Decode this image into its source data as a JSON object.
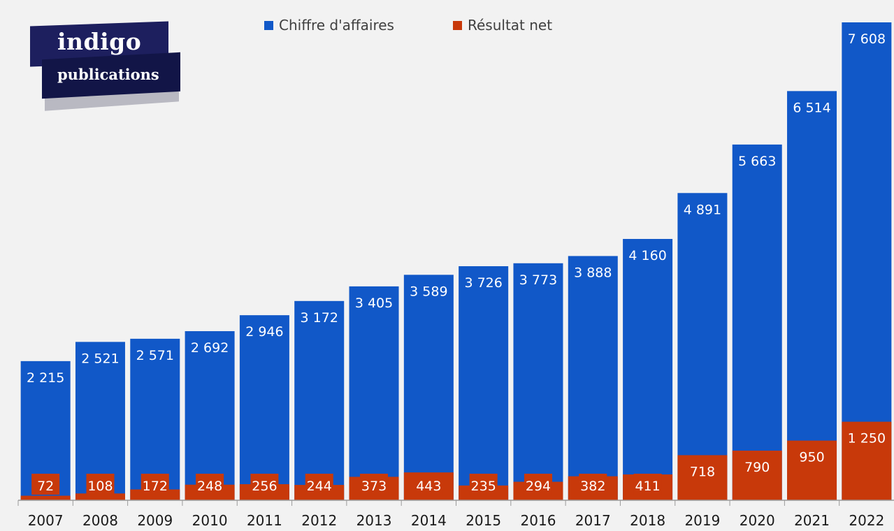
{
  "chart_data": {
    "type": "bar",
    "categories": [
      "2007",
      "2008",
      "2009",
      "2010",
      "2011",
      "2012",
      "2013",
      "2014",
      "2015",
      "2016",
      "2017",
      "2018",
      "2019",
      "2020",
      "2021",
      "2022"
    ],
    "series": [
      {
        "name": "Chiffre d'affaires",
        "color": "#1158c8",
        "values": [
          2215,
          2521,
          2571,
          2692,
          2946,
          3172,
          3405,
          3589,
          3726,
          3773,
          3888,
          4160,
          4891,
          5663,
          6514,
          7608
        ]
      },
      {
        "name": "Résultat net",
        "color": "#c8390a",
        "values": [
          72,
          108,
          172,
          248,
          256,
          244,
          373,
          443,
          235,
          294,
          382,
          411,
          718,
          790,
          950,
          1250
        ]
      }
    ],
    "value_labels": [
      [
        "2 215",
        "2 521",
        "2 571",
        "2 692",
        "2 946",
        "3 172",
        "3 405",
        "3 589",
        "3 726",
        "3 773",
        "3 888",
        "4 160",
        "4 891",
        "5 663",
        "6 514",
        "7 608"
      ],
      [
        "72",
        "108",
        "172",
        "248",
        "256",
        "244",
        "373",
        "443",
        "235",
        "294",
        "382",
        "411",
        "718",
        "790",
        "950",
        "1 250"
      ]
    ],
    "ylim": [
      0,
      7608
    ],
    "legend_position": "top",
    "grid": false
  },
  "legend": {
    "revenue_label": "Chiffre d'affaires",
    "net_label": "Résultat net"
  },
  "logo": {
    "line1": "indigo",
    "line2": "publications"
  }
}
